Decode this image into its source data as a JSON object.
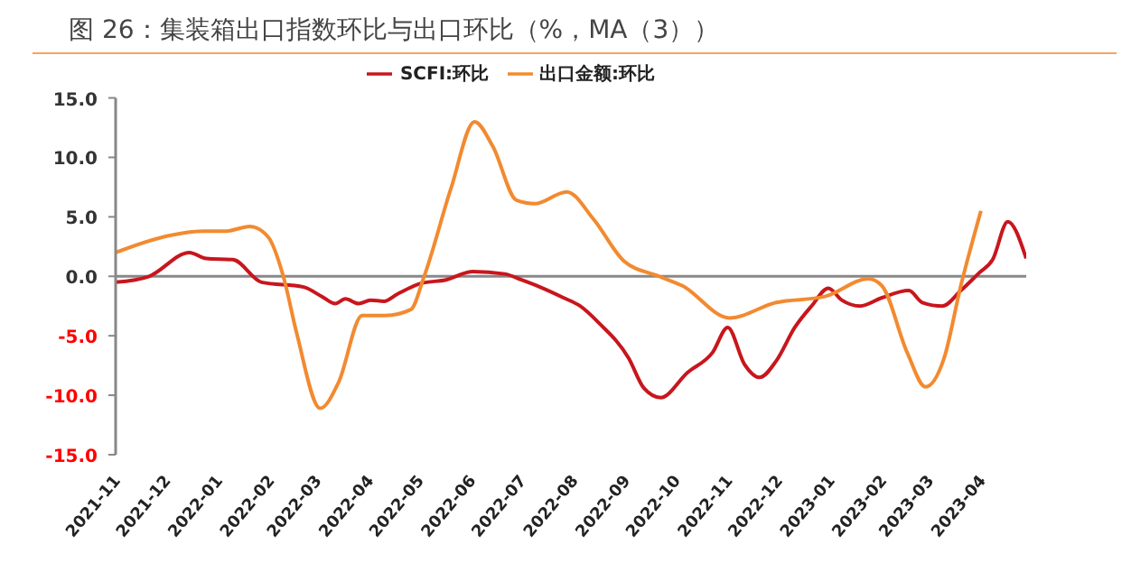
{
  "chart_data": {
    "type": "line",
    "title": "图 26：集装箱出口指数环比与出口环比（%，MA（3））",
    "series": [
      {
        "name": "SCFI:环比",
        "color": "#c8161d",
        "x": [
          "2021-11-01",
          "2021-11-21",
          "2021-12-15",
          "2021-12-25",
          "2022-01-10",
          "2022-01-27",
          "2022-02-21",
          "2022-03-04",
          "2022-03-12",
          "2022-03-18",
          "2022-03-26",
          "2022-04-02",
          "2022-04-10",
          "2022-04-18",
          "2022-05-02",
          "2022-05-17",
          "2022-06-02",
          "2022-06-21",
          "2022-07-01",
          "2022-07-12",
          "2022-07-26",
          "2022-08-05",
          "2022-08-16",
          "2022-09-03",
          "2022-09-12",
          "2022-09-22",
          "2022-10-08",
          "2022-10-23",
          "2022-11-01",
          "2022-11-11",
          "2022-11-20",
          "2022-11-30",
          "2022-12-11",
          "2022-12-21",
          "2022-12-31",
          "2023-01-08",
          "2023-01-19",
          "2023-02-01",
          "2023-02-17",
          "2023-02-25",
          "2023-03-09",
          "2023-03-20",
          "2023-03-31",
          "2023-04-08",
          "2023-04-17",
          "2023-04-28"
        ],
        "values": [
          -0.5,
          0,
          2.0,
          1.5,
          1.4,
          -0.5,
          -0.9,
          -1.7,
          -2.3,
          -1.9,
          -2.3,
          -2.0,
          -2.1,
          -1.5,
          -0.6,
          -0.3,
          0.4,
          0.2,
          -0.3,
          -0.9,
          -1.8,
          -2.5,
          -3.9,
          -6.9,
          -9.4,
          -10.2,
          -8.1,
          -6.4,
          -4.3,
          -7.4,
          -8.5,
          -7.1,
          -4.3,
          -2.5,
          -1.0,
          -2.0,
          -2.5,
          -1.8,
          -1.2,
          -2.2,
          -2.5,
          -1.2,
          0.3,
          1.4,
          4.6,
          1.5
        ]
      },
      {
        "name": "出口金额:环比",
        "color": "#f28a30",
        "x": [
          "2021-11-01",
          "2021-12-02",
          "2021-12-23",
          "2022-01-06",
          "2022-01-20",
          "2022-01-31",
          "2022-02-09",
          "2022-02-17",
          "2022-03-03",
          "2022-03-14",
          "2022-03-28",
          "2022-04-11",
          "2022-04-26",
          "2022-05-04",
          "2022-05-20",
          "2022-06-03",
          "2022-06-14",
          "2022-06-28",
          "2022-07-09",
          "2022-07-28",
          "2022-08-13",
          "2022-08-31",
          "2022-09-21",
          "2022-10-05",
          "2022-11-02",
          "2022-11-30",
          "2022-12-29",
          "2023-01-24",
          "2023-02-01",
          "2023-02-16",
          "2023-02-27",
          "2023-03-10",
          "2023-03-20",
          "2023-04-01"
        ],
        "values": [
          2.0,
          3.4,
          3.8,
          3.8,
          4.2,
          3.3,
          0,
          -4.8,
          -11.1,
          -8.9,
          -3.3,
          -3.3,
          -2.8,
          0,
          7.4,
          13.0,
          10.9,
          6.4,
          6.1,
          7.1,
          4.8,
          1.3,
          0,
          -0.8,
          -3.5,
          -2.2,
          -1.7,
          -0.2,
          -0.8,
          -6.4,
          -9.3,
          -6.9,
          -0.8,
          5.5
        ]
      }
    ],
    "xlim": [
      "2021-11-01",
      "2023-04-28"
    ],
    "xticks": [
      "2021-11",
      "2021-12",
      "2022-01",
      "2022-02",
      "2022-03",
      "2022-04",
      "2022-05",
      "2022-06",
      "2022-07",
      "2022-08",
      "2022-09",
      "2022-10",
      "2022-11",
      "2022-12",
      "2023-01",
      "2023-02",
      "2023-03",
      "2023-04"
    ],
    "ylim": [
      -15,
      15
    ],
    "yticks": [
      {
        "value": -15,
        "label": "-15.0"
      },
      {
        "value": -10,
        "label": "-10.0"
      },
      {
        "value": -5,
        "label": "-5.0"
      },
      {
        "value": 0,
        "label": "0.0"
      },
      {
        "value": 5,
        "label": "5.0"
      },
      {
        "value": 10,
        "label": "10.0"
      },
      {
        "value": 15,
        "label": "15.0"
      }
    ],
    "ref_lines": [
      {
        "axis": "y",
        "value": 0,
        "color": "#888888"
      }
    ],
    "legend": "top",
    "grid": false,
    "marker": "none",
    "line_style": "solid"
  }
}
